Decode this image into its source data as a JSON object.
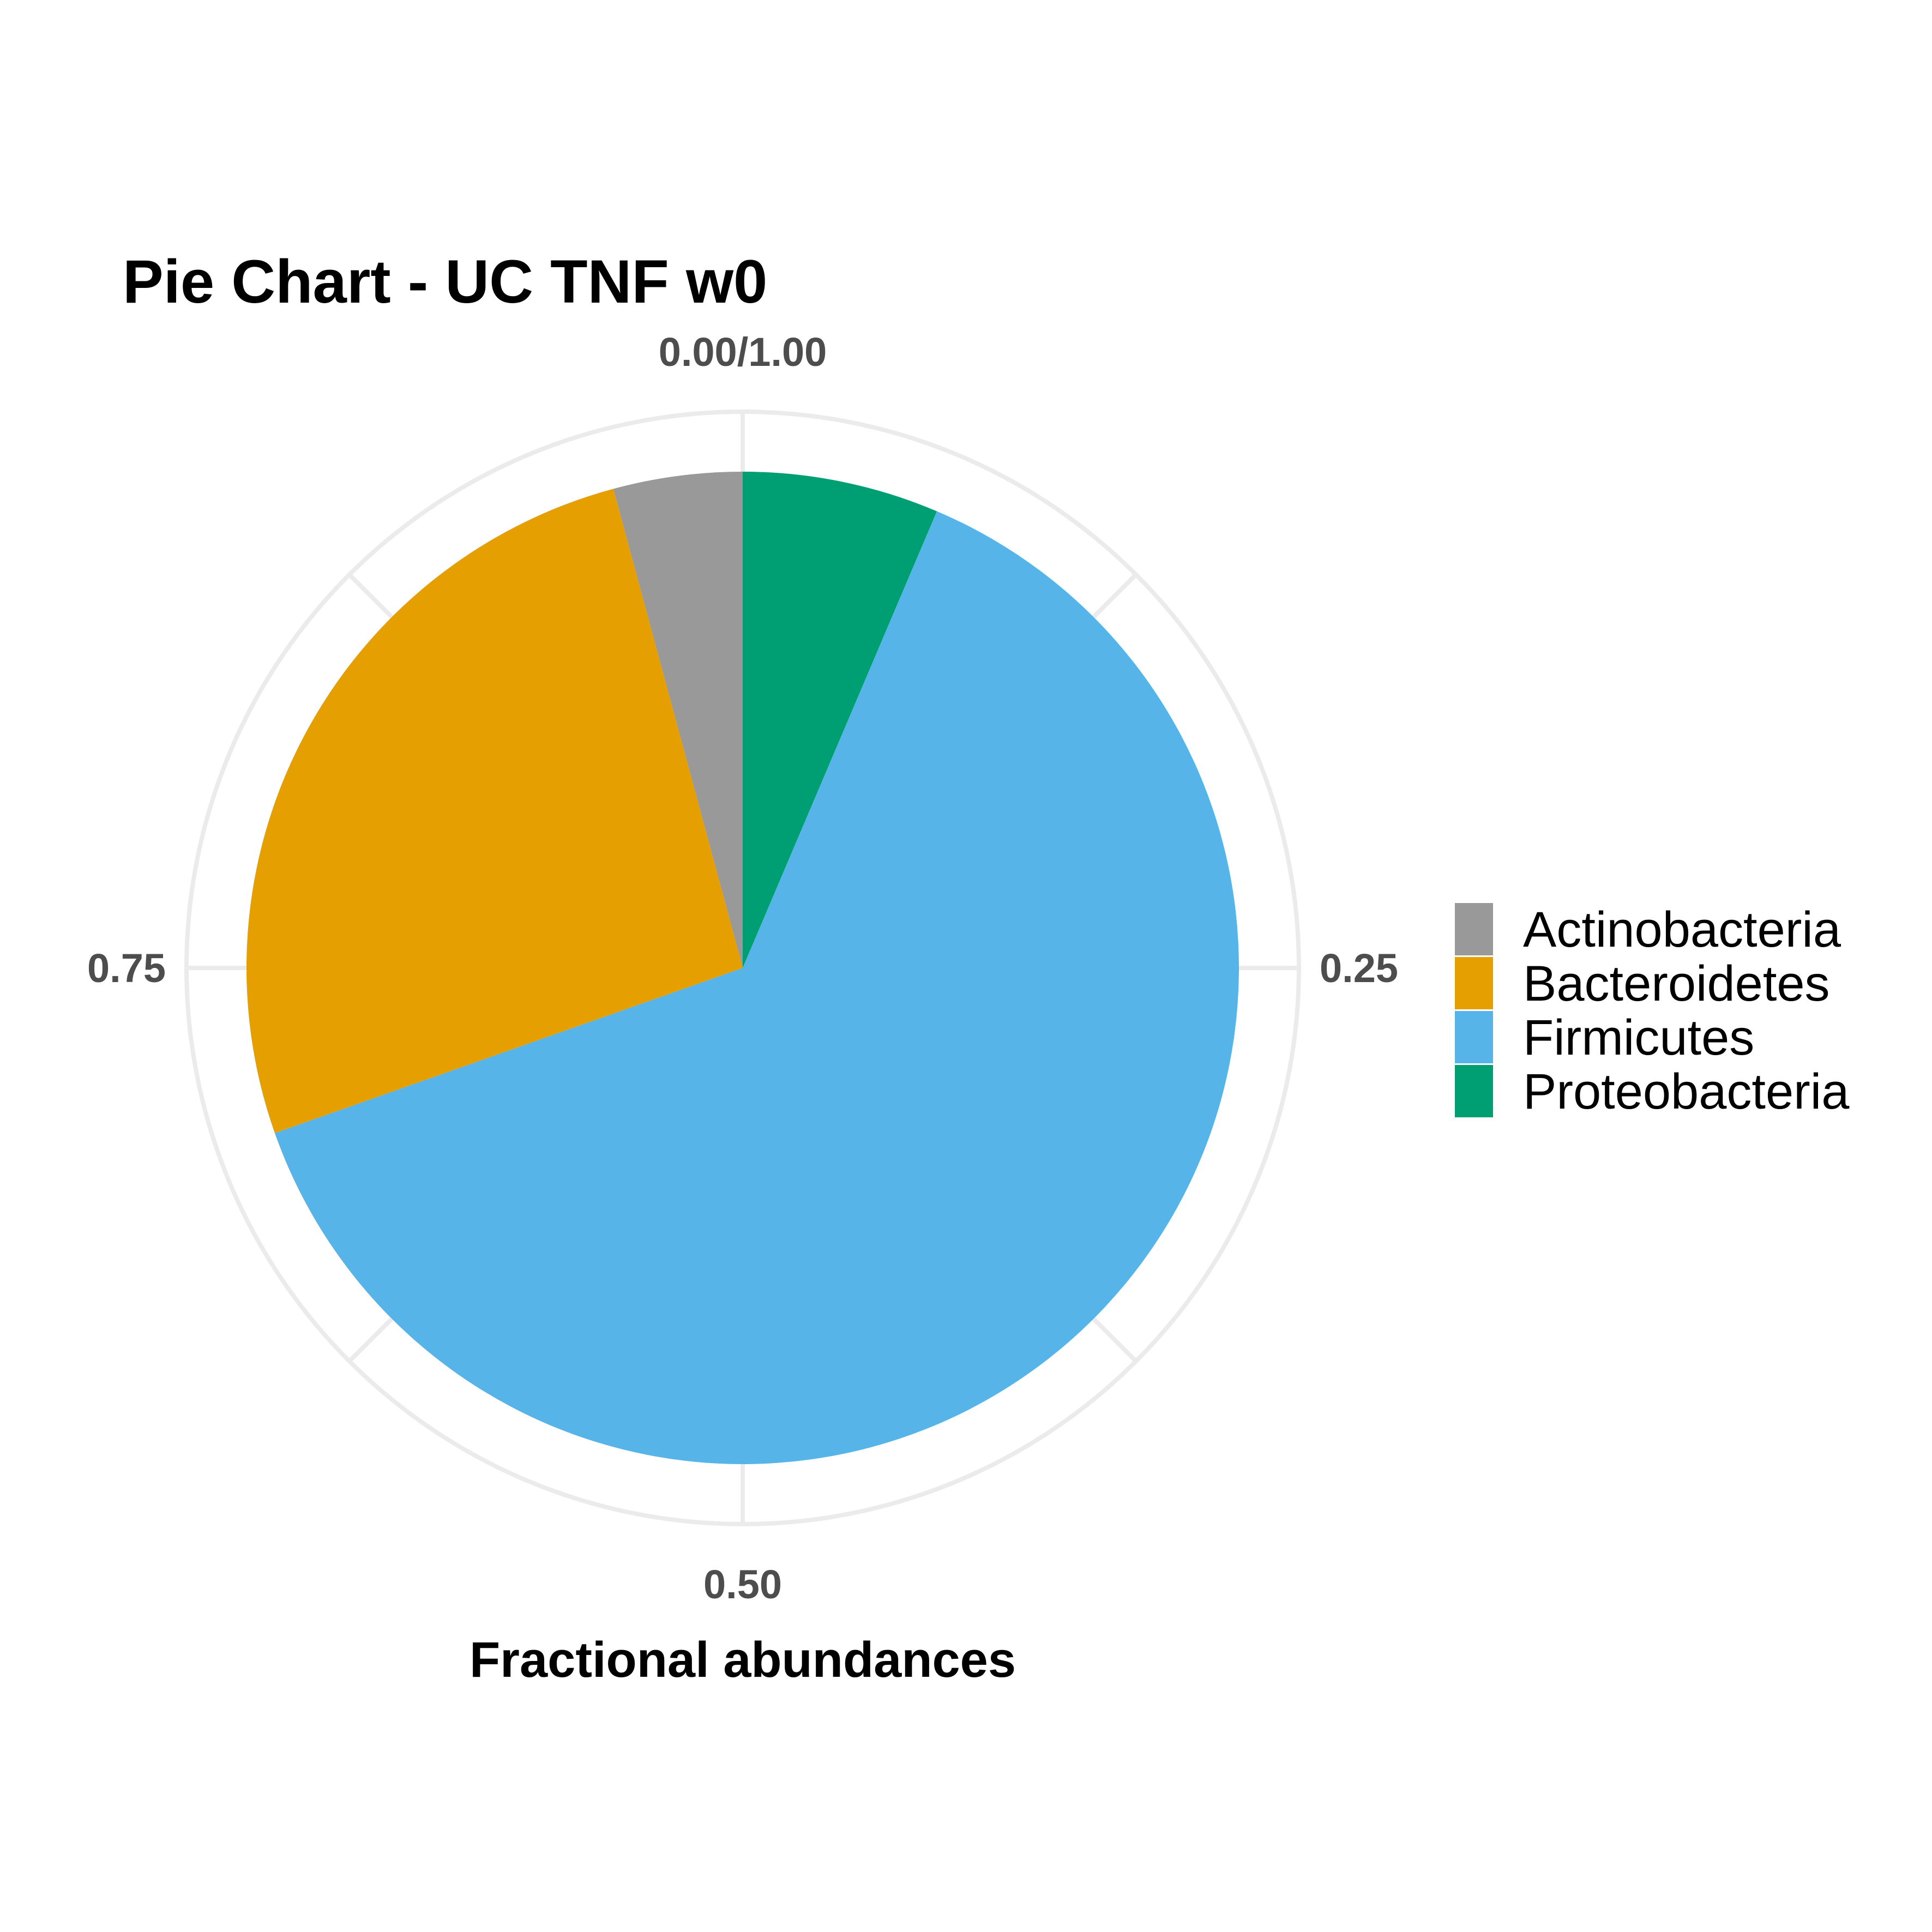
{
  "chart_data": {
    "type": "pie",
    "title": "Pie Chart - UC TNF w0",
    "xlabel": "Fractional abundances",
    "ylabel": "",
    "categories": [
      "Actinobacteria",
      "Bacteroidetes",
      "Firmicutes",
      "Proteobacteria"
    ],
    "values": [
      0.042,
      0.262,
      0.632,
      0.064
    ],
    "colors": [
      "#999999",
      "#E69F00",
      "#56B4E9",
      "#009E73"
    ],
    "slice_order_clockwise_from_top": [
      "Proteobacteria",
      "Firmicutes",
      "Bacteroidetes",
      "Actinobacteria"
    ],
    "tick_labels": [
      {
        "value": 0.0,
        "label": "0.00/1.00"
      },
      {
        "value": 0.25,
        "label": "0.25"
      },
      {
        "value": 0.5,
        "label": "0.50"
      },
      {
        "value": 0.75,
        "label": "0.75"
      }
    ],
    "legend_position": "right",
    "grid": true
  }
}
